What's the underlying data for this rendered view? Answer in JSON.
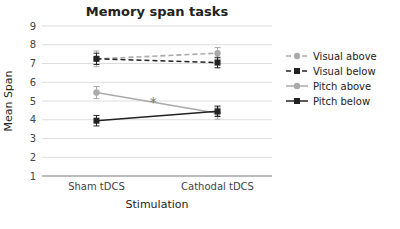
{
  "chart_data": {
    "type": "line",
    "title": "Memory span tasks",
    "x_label": "Stimulation",
    "y_label": "Mean Span",
    "categories": [
      "Sham tDCS",
      "Cathodal tDCS"
    ],
    "series": [
      {
        "name": "Visual above",
        "color": "#aaaaaa",
        "line_style": "dashed",
        "marker": "circle",
        "values": [
          7.25,
          7.55
        ],
        "errors": [
          0.42,
          0.3
        ]
      },
      {
        "name": "Visual below",
        "color": "#222222",
        "line_style": "dashed",
        "marker": "square",
        "values": [
          7.25,
          7.05
        ],
        "errors": [
          0.3,
          0.28
        ]
      },
      {
        "name": "Pitch above",
        "color": "#aaaaaa",
        "line_style": "solid",
        "marker": "circle",
        "values": [
          5.45,
          4.35
        ],
        "errors": [
          0.32,
          0.32
        ]
      },
      {
        "name": "Pitch below",
        "color": "#222222",
        "line_style": "solid",
        "marker": "square",
        "values": [
          3.95,
          4.45
        ],
        "errors": [
          0.28,
          0.28
        ]
      }
    ],
    "ylim": [
      1,
      9
    ],
    "yticks": [
      1,
      2,
      3,
      4,
      5,
      6,
      7,
      8,
      9
    ],
    "grid": true,
    "legend": "right",
    "annotations": [
      {
        "text": "*",
        "x": 0.47,
        "y": 4.97
      }
    ]
  }
}
